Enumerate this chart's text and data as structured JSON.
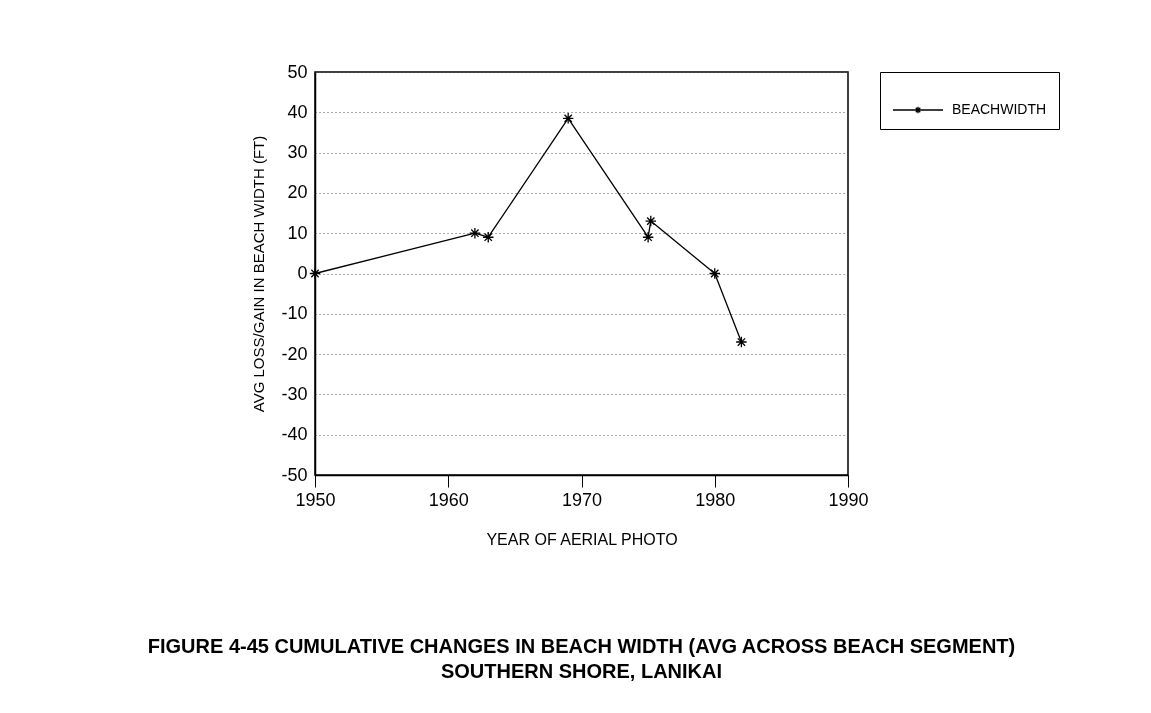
{
  "chart_data": {
    "type": "line",
    "title": "FIGURE 4-45  CUMULATIVE CHANGES IN BEACH WIDTH (AVG ACROSS BEACH SEGMENT)",
    "subtitle": "SOUTHERN SHORE, LANIKAI",
    "xlabel": "YEAR OF AERIAL PHOTO",
    "ylabel": "AVG LOSS/GAIN IN BEACH WIDTH (FT)",
    "x": [
      1950,
      1962,
      1963,
      1969,
      1975,
      1975.2,
      1980,
      1982
    ],
    "series": [
      {
        "name": "BEACHWIDTH",
        "color": "#000000",
        "values": [
          0,
          10,
          9,
          38.5,
          9,
          13,
          0,
          -17
        ]
      }
    ],
    "xlim": [
      1950,
      1990
    ],
    "xticks": [
      1950,
      1960,
      1970,
      1980,
      1990
    ],
    "ylim": [
      -50,
      50
    ],
    "yticks": [
      -50,
      -40,
      -30,
      -20,
      -10,
      0,
      10,
      20,
      30,
      40,
      50
    ],
    "grid": "y",
    "legend": "top right",
    "marker": "cross",
    "line_style": "solid"
  }
}
